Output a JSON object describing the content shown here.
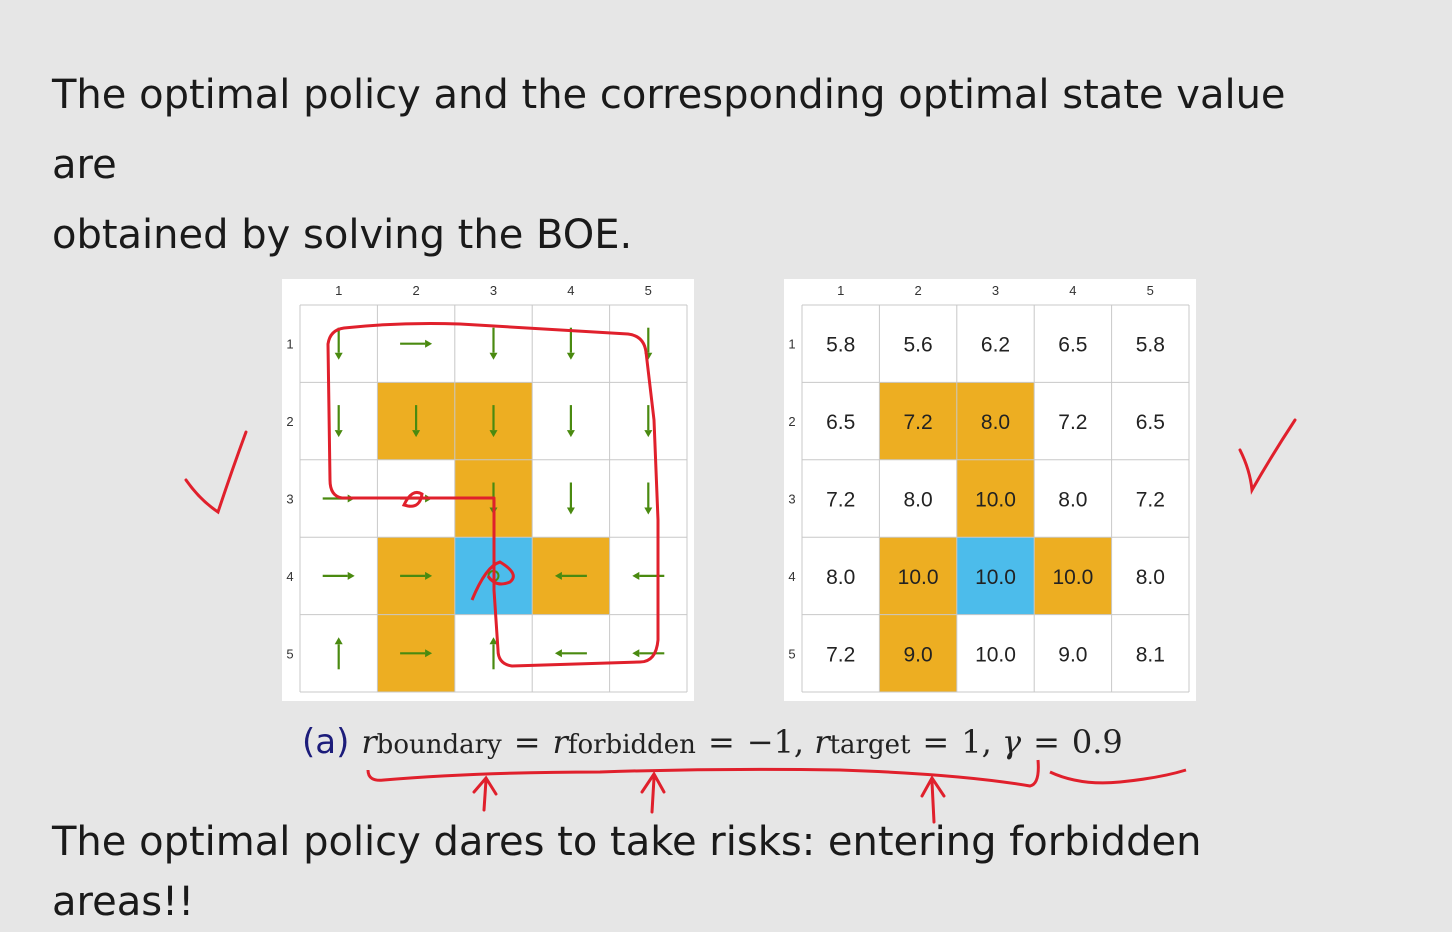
{
  "intro": {
    "line1": "The optimal policy and the corresponding optimal state value are",
    "line2": "obtained by solving the BOE."
  },
  "grids": {
    "col_labels": [
      "1",
      "2",
      "3",
      "4",
      "5"
    ],
    "row_labels": [
      "1",
      "2",
      "3",
      "4",
      "5"
    ],
    "cell_types": [
      [
        "normal",
        "normal",
        "normal",
        "normal",
        "normal"
      ],
      [
        "normal",
        "forbidden",
        "forbidden",
        "normal",
        "normal"
      ],
      [
        "normal",
        "normal",
        "forbidden",
        "normal",
        "normal"
      ],
      [
        "normal",
        "forbidden",
        "target",
        "forbidden",
        "normal"
      ],
      [
        "normal",
        "forbidden",
        "normal",
        "normal",
        "normal"
      ]
    ],
    "colors": {
      "normal": "#ffffff",
      "forbidden": "#edae22",
      "target": "#4cbceb",
      "grid_line": "#c8c8c8",
      "arrow": "#4a8a10",
      "annotation": "#e0202c"
    },
    "policy": [
      [
        "down",
        "right",
        "down",
        "down",
        "down"
      ],
      [
        "down",
        "down",
        "down",
        "down",
        "down"
      ],
      [
        "right",
        "right",
        "down",
        "down",
        "down"
      ],
      [
        "right",
        "right",
        "stay",
        "left",
        "left"
      ],
      [
        "up",
        "right",
        "up",
        "left",
        "left"
      ]
    ],
    "values": [
      [
        "5.8",
        "5.6",
        "6.2",
        "6.5",
        "5.8"
      ],
      [
        "6.5",
        "7.2",
        "8.0",
        "7.2",
        "6.5"
      ],
      [
        "7.2",
        "8.0",
        "10.0",
        "8.0",
        "7.2"
      ],
      [
        "8.0",
        "10.0",
        "10.0",
        "10.0",
        "8.0"
      ],
      [
        "7.2",
        "9.0",
        "10.0",
        "9.0",
        "8.1"
      ]
    ]
  },
  "caption": {
    "tag": "(a)",
    "r": "r",
    "sub_boundary": "boundary",
    "sub_forbidden": "forbidden",
    "sub_target": "target",
    "eq": "=",
    "neg_one": "−1,",
    "one": "1,",
    "gamma": "γ",
    "gamma_value": "0.9"
  },
  "conclusion": "The optimal policy dares to take risks: entering forbidden areas!!"
}
